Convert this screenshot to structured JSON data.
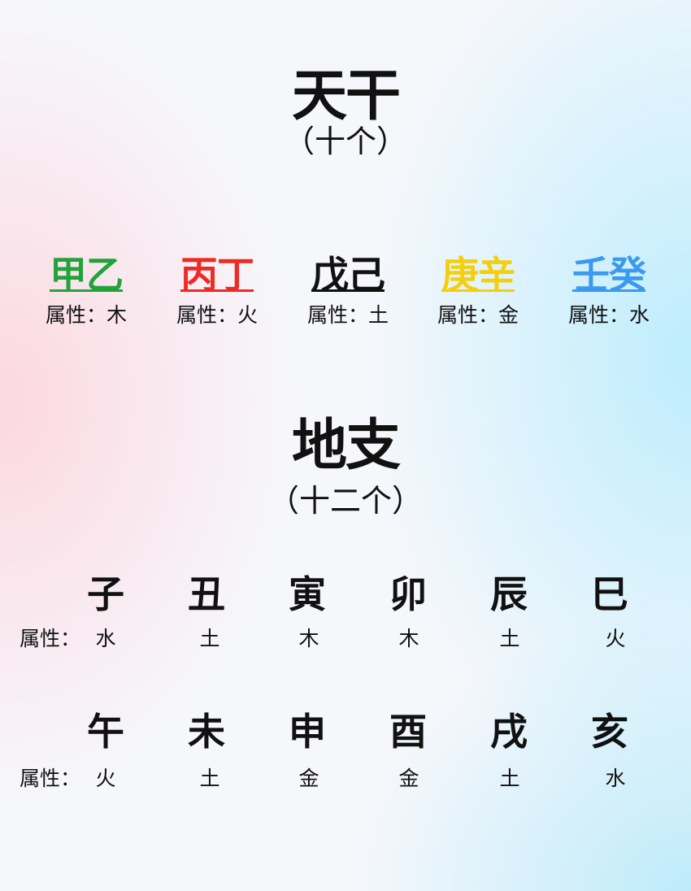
{
  "tiangan": {
    "title": "天干",
    "subtitle": "（十个）",
    "stems": [
      {
        "chars": "甲乙",
        "attr": "属性：木",
        "color": "#22a33a"
      },
      {
        "chars": "丙丁",
        "attr": "属性：火",
        "color": "#ee2a24"
      },
      {
        "chars": "戊己",
        "attr": "属性：土",
        "color": "#111111"
      },
      {
        "chars": "庚辛",
        "attr": "属性：金",
        "color": "#f3cf10"
      },
      {
        "chars": "壬癸",
        "attr": "属性：水",
        "color": "#3a9af0"
      }
    ]
  },
  "dizhi": {
    "title": "地支",
    "subtitle": "（十二个）",
    "attr_label": "属性：",
    "rows": [
      {
        "chars": [
          "子",
          "丑",
          "寅",
          "卯",
          "辰",
          "巳"
        ],
        "attrs": [
          "水",
          "土",
          "木",
          "木",
          "土",
          "火"
        ]
      },
      {
        "chars": [
          "午",
          "未",
          "申",
          "酉",
          "戌",
          "亥"
        ],
        "attrs": [
          "火",
          "土",
          "金",
          "金",
          "土",
          "水"
        ]
      }
    ]
  }
}
